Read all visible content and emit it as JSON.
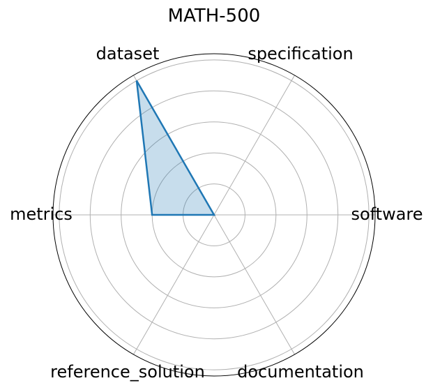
{
  "chart_data": {
    "type": "radar",
    "title": "MATH-500",
    "axes": [
      "software",
      "specification",
      "dataset",
      "metrics",
      "reference_solution",
      "documentation"
    ],
    "series": [
      {
        "values": [
          0,
          0,
          5,
          2,
          0,
          0
        ]
      }
    ],
    "rmax": 5.2,
    "rticks": [
      1,
      2,
      3,
      4,
      5
    ],
    "grid": true,
    "colors": {
      "line": "#1f77b4",
      "fill": "#1f77b4",
      "grid": "#b0b0b0",
      "frame": "#000000"
    }
  }
}
